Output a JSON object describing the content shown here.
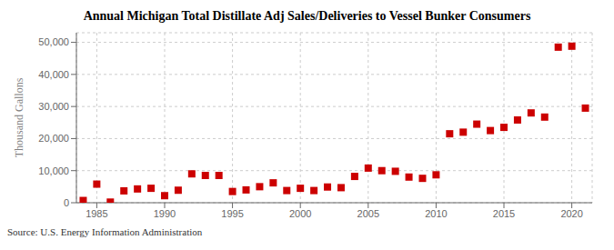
{
  "chart_data": {
    "type": "scatter",
    "title": "Annual Michigan Total Distillate Adj Sales/Deliveries to Vessel Bunker Consumers",
    "ylabel": "Thousand Gallons",
    "annotations": [
      "Source: U.S. Energy Information Administration"
    ],
    "x": [
      1984,
      1985,
      1986,
      1987,
      1988,
      1989,
      1990,
      1991,
      1992,
      1993,
      1994,
      1995,
      1996,
      1997,
      1998,
      1999,
      2000,
      2001,
      2002,
      2003,
      2004,
      2005,
      2006,
      2007,
      2008,
      2009,
      2010,
      2011,
      2012,
      2013,
      2014,
      2015,
      2016,
      2017,
      2018,
      2019,
      2020,
      2021
    ],
    "values": [
      700,
      5800,
      200,
      3700,
      4300,
      4500,
      2200,
      3900,
      9000,
      8500,
      8500,
      3500,
      4000,
      5000,
      6200,
      3800,
      4500,
      3800,
      4900,
      4700,
      8200,
      10800,
      10000,
      9800,
      8000,
      7600,
      8700,
      21500,
      22000,
      24500,
      22500,
      23500,
      25800,
      28000,
      26700,
      48500,
      48800,
      29500
    ],
    "color": "#cc0000",
    "marker": "square",
    "xlim": [
      1983.5,
      2021.5
    ],
    "xticks": [
      1985,
      1990,
      1995,
      2000,
      2005,
      2010,
      2015,
      2020
    ],
    "ylim": [
      0,
      53000
    ],
    "yticks": [
      0,
      {
        "value": 10000,
        "label": "10,000"
      },
      {
        "value": 20000,
        "label": "20,000"
      },
      {
        "value": 30000,
        "label": "30,000"
      },
      {
        "value": 40000,
        "label": "40,000"
      },
      {
        "value": 50000,
        "label": "50,000"
      }
    ],
    "grid": true
  }
}
